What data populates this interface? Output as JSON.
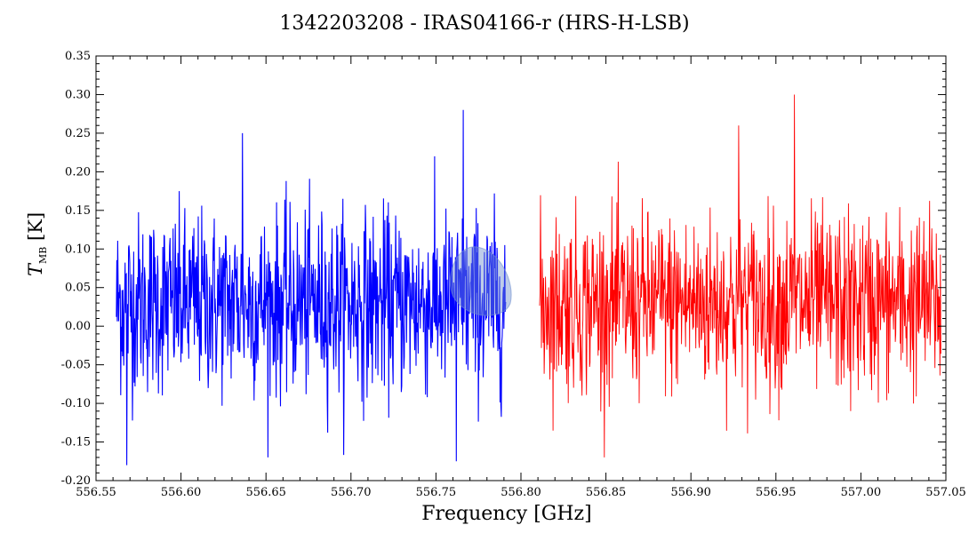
{
  "chart_data": {
    "type": "line",
    "title": "1342203208 - IRAS04166-r (HRS-H-LSB)",
    "xlabel": "Frequency [GHz]",
    "ylabel_main": "T",
    "ylabel_sub": "MB",
    "ylabel_unit": "[K]",
    "xlim": [
      556.55,
      557.05
    ],
    "ylim": [
      -0.2,
      0.35
    ],
    "xticks": [
      "556.55",
      "556.60",
      "556.65",
      "556.70",
      "556.75",
      "556.80",
      "556.85",
      "556.90",
      "556.95",
      "557.00",
      "557.05"
    ],
    "yticks": [
      "-0.20",
      "-0.15",
      "-0.10",
      "-0.05",
      "0.00",
      "0.05",
      "0.10",
      "0.15",
      "0.20",
      "0.25",
      "0.30",
      "0.35"
    ],
    "grid": false,
    "series": [
      {
        "color": "#0000ff",
        "x_range": [
          556.562,
          556.791
        ],
        "mean": 0.03,
        "std": 0.058,
        "points": 900,
        "notable_peaks": [
          {
            "x": 556.636,
            "y": 0.25
          },
          {
            "x": 556.766,
            "y": 0.28
          },
          {
            "x": 556.762,
            "y": -0.175
          },
          {
            "x": 556.568,
            "y": -0.18
          }
        ]
      },
      {
        "color": "#ff0000",
        "x_range": [
          556.811,
          557.047
        ],
        "mean": 0.03,
        "std": 0.058,
        "points": 900,
        "notable_peaks": [
          {
            "x": 556.961,
            "y": 0.3
          },
          {
            "x": 556.928,
            "y": 0.26
          },
          {
            "x": 556.994,
            "y": -0.11
          }
        ]
      }
    ],
    "annotation": {
      "shape": "translucent blue lobe",
      "x_center": 556.778,
      "y_center": 0.05,
      "color": "#6f8fcf"
    }
  }
}
